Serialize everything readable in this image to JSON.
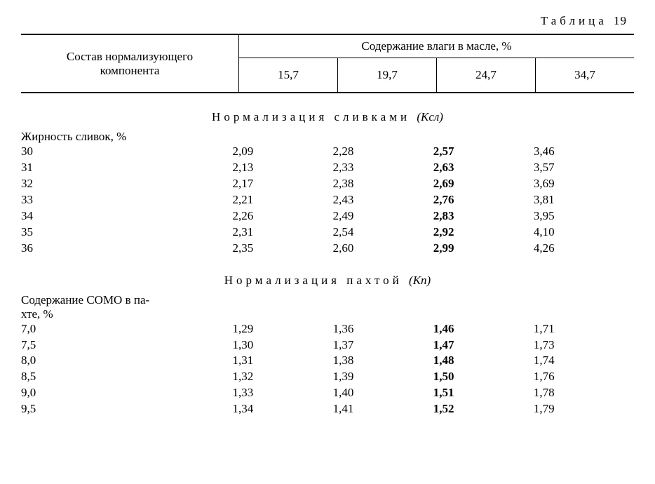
{
  "caption_word": "Таблица",
  "caption_num": "19",
  "header": {
    "row_label_l1": "Состав нормализующего",
    "row_label_l2": "компонента",
    "moisture_header": "Содержание влаги в масле, %",
    "cols": [
      "15,7",
      "19,7",
      "24,7",
      "34,7"
    ]
  },
  "section1": {
    "title": "Нормализация сливками",
    "coef": "(Kсл)",
    "group_label": "Жирность сливок, %",
    "rows": [
      {
        "lab": "30",
        "v": [
          "2,09",
          "2,28",
          "2,57",
          "3,46"
        ]
      },
      {
        "lab": "31",
        "v": [
          "2,13",
          "2,33",
          "2,63",
          "3,57"
        ]
      },
      {
        "lab": "32",
        "v": [
          "2,17",
          "2,38",
          "2,69",
          "3,69"
        ]
      },
      {
        "lab": "33",
        "v": [
          "2,21",
          "2,43",
          "2,76",
          "3,81"
        ]
      },
      {
        "lab": "34",
        "v": [
          "2,26",
          "2,49",
          "2,83",
          "3,95"
        ]
      },
      {
        "lab": "35",
        "v": [
          "2,31",
          "2,54",
          "2,92",
          "4,10"
        ]
      },
      {
        "lab": "36",
        "v": [
          "2,35",
          "2,60",
          "2,99",
          "4,26"
        ]
      }
    ]
  },
  "section2": {
    "title": "Нормализация пахтой",
    "coef": "(Kп)",
    "group_label_l1": "Содержание СОМО в па-",
    "group_label_l2": "хте, %",
    "rows": [
      {
        "lab": "7,0",
        "v": [
          "1,29",
          "1,36",
          "1,46",
          "1,71"
        ]
      },
      {
        "lab": "7,5",
        "v": [
          "1,30",
          "1,37",
          "1,47",
          "1,73"
        ]
      },
      {
        "lab": "8,0",
        "v": [
          "1,31",
          "1,38",
          "1,48",
          "1,74"
        ]
      },
      {
        "lab": "8,5",
        "v": [
          "1,32",
          "1,39",
          "1,50",
          "1,76"
        ]
      },
      {
        "lab": "9,0",
        "v": [
          "1,33",
          "1,40",
          "1,51",
          "1,78"
        ]
      },
      {
        "lab": "9,5",
        "v": [
          "1,34",
          "1,41",
          "1,52",
          "1,79"
        ]
      }
    ]
  }
}
